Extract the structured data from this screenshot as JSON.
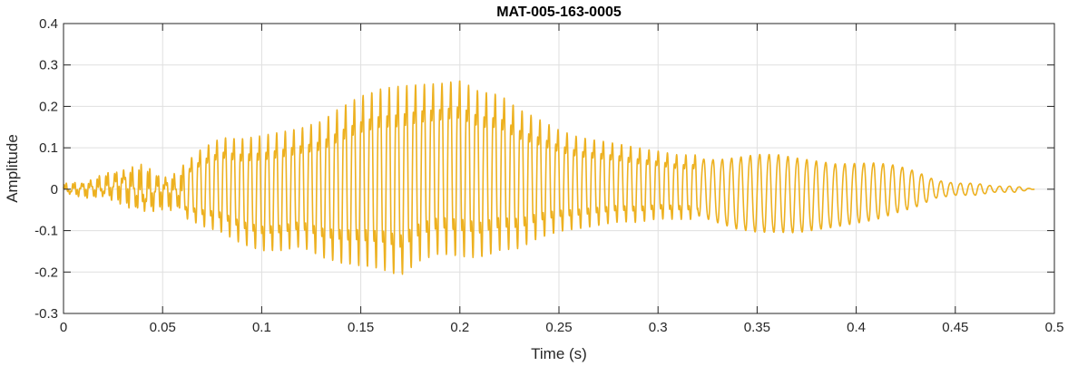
{
  "chart_data": {
    "type": "line",
    "title": "MAT-005-163-0005",
    "xlabel": "Time (s)",
    "ylabel": "Amplitude",
    "xlim": [
      0,
      0.5
    ],
    "ylim": [
      -0.3,
      0.4
    ],
    "xticks": [
      0,
      0.05,
      0.1,
      0.15,
      0.2,
      0.25,
      0.3,
      0.35,
      0.4,
      0.45,
      0.5
    ],
    "xtick_labels": [
      "0",
      "0.05",
      "0.1",
      "0.15",
      "0.2",
      "0.25",
      "0.3",
      "0.35",
      "0.4",
      "0.45",
      "0.5"
    ],
    "yticks": [
      -0.3,
      -0.2,
      -0.1,
      0,
      0.1,
      0.2,
      0.3,
      0.4
    ],
    "ytick_labels": [
      "-0.3",
      "-0.2",
      "-0.1",
      "0",
      "0.1",
      "0.2",
      "0.3",
      "0.4"
    ],
    "grid": true,
    "line_color": "#EDB120",
    "series": [
      {
        "x": [
          0,
          0.01,
          0.02,
          0.03,
          0.04,
          0.05,
          0.06,
          0.07,
          0.08,
          0.09,
          0.1,
          0.11,
          0.12,
          0.13,
          0.14,
          0.15,
          0.16,
          0.17,
          0.18,
          0.19,
          0.2,
          0.21,
          0.22,
          0.23,
          0.24,
          0.25,
          0.26,
          0.27,
          0.28,
          0.29,
          0.3,
          0.31,
          0.32,
          0.33,
          0.34,
          0.35,
          0.36,
          0.37,
          0.38,
          0.39,
          0.4,
          0.41,
          0.42,
          0.43,
          0.44,
          0.45,
          0.46,
          0.47,
          0.48,
          0.49
        ],
        "upper": [
          0.02,
          0.03,
          0.05,
          0.08,
          0.09,
          0.06,
          0.07,
          0.12,
          0.15,
          0.15,
          0.16,
          0.17,
          0.18,
          0.2,
          0.24,
          0.27,
          0.29,
          0.3,
          0.3,
          0.3,
          0.31,
          0.28,
          0.27,
          0.23,
          0.2,
          0.17,
          0.15,
          0.14,
          0.13,
          0.12,
          0.11,
          0.1,
          0.1,
          0.1,
          0.11,
          0.12,
          0.12,
          0.11,
          0.1,
          0.09,
          0.09,
          0.09,
          0.08,
          0.06,
          0.03,
          0.02,
          0.02,
          0.01,
          0.01,
          0.0
        ],
        "lower": [
          -0.02,
          -0.03,
          -0.04,
          -0.06,
          -0.1,
          -0.07,
          -0.08,
          -0.11,
          -0.13,
          -0.16,
          -0.18,
          -0.18,
          -0.17,
          -0.2,
          -0.22,
          -0.23,
          -0.24,
          -0.26,
          -0.22,
          -0.2,
          -0.21,
          -0.21,
          -0.19,
          -0.18,
          -0.15,
          -0.13,
          -0.12,
          -0.11,
          -0.1,
          -0.1,
          -0.09,
          -0.09,
          -0.09,
          -0.11,
          -0.13,
          -0.14,
          -0.14,
          -0.14,
          -0.13,
          -0.12,
          -0.11,
          -0.1,
          -0.08,
          -0.06,
          -0.03,
          -0.02,
          -0.02,
          -0.01,
          -0.01,
          0.0
        ]
      }
    ]
  }
}
